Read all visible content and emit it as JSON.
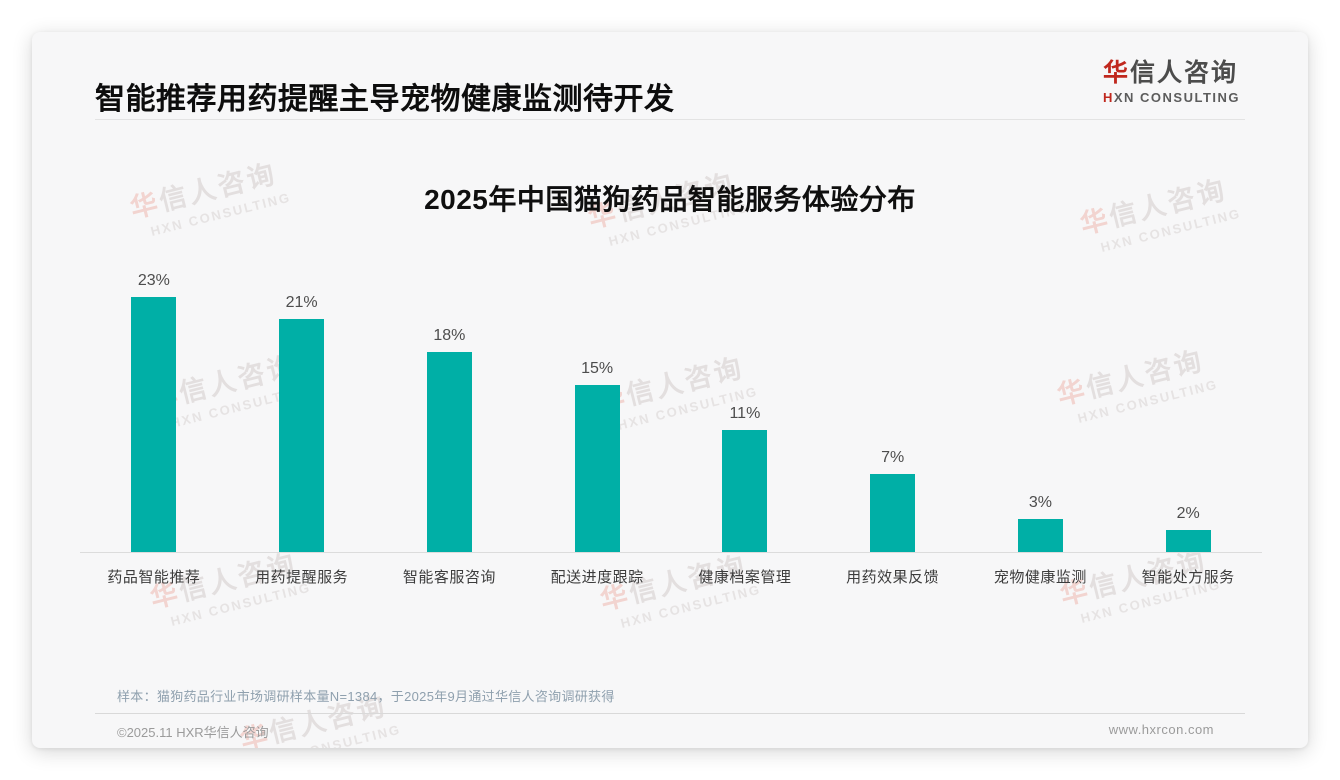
{
  "page": {
    "background": "#ffffff",
    "card_background": "#f7f7f8"
  },
  "header": {
    "title": "智能推荐用药提醒主导宠物健康监测待开发",
    "logo": {
      "cn_accent": "华",
      "cn_rest": "信人咨询",
      "en_accent": "H",
      "en_rest": "XN CONSULTING"
    }
  },
  "chart_data": {
    "type": "bar",
    "title": "2025年中国猫狗药品智能服务体验分布",
    "categories": [
      "药品智能推荐",
      "用药提醒服务",
      "智能客服咨询",
      "配送进度跟踪",
      "健康档案管理",
      "用药效果反馈",
      "宠物健康监测",
      "智能处方服务"
    ],
    "values": [
      23,
      21,
      18,
      15,
      11,
      7,
      3,
      2
    ],
    "unit": "%",
    "bar_color": "#00AFA6",
    "value_label_color": "#4d4d4d",
    "xlabel": "",
    "ylabel": "",
    "ylim": [
      0,
      25
    ],
    "grid": false,
    "legend": false,
    "value_labels_shown": true
  },
  "watermark": {
    "cn_accent": "华",
    "cn_rest": "信人咨询",
    "en": "HXN CONSULTING"
  },
  "footer": {
    "note": "样本：猫狗药品行业市场调研样本量N=1384，于2025年9月通过华信人咨询调研获得",
    "copyright": "©2025.11 HXR华信人咨询",
    "website": "www.hxrcon.com"
  },
  "colors": {
    "accent_red": "#C0281E",
    "bar_teal": "#00AFA6",
    "title_text": "#0D0D0D",
    "note_text": "#8FA0AE",
    "muted_text": "#9B9B9B"
  }
}
